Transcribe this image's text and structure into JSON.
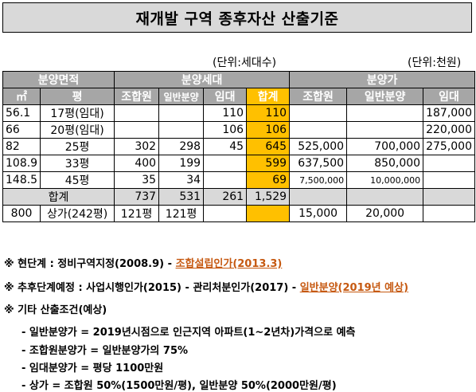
{
  "title": "재개발 구역 종후자산  산출기준",
  "units": {
    "households": "(단위:세대수)",
    "price": "(단위:천원)"
  },
  "header": {
    "area": "분양면적",
    "households": "분양세대",
    "price": "분양가",
    "sqm": "㎡",
    "pyeong": "평",
    "members": "조합원",
    "general": "일반분양",
    "rental": "임대",
    "total": "합계",
    "price_members": "조합원",
    "price_general": "일반분양",
    "price_rental": "임대"
  },
  "rows": [
    {
      "sqm": "56.1",
      "pyeong": "17평(임대)",
      "members": "",
      "general": "",
      "rental": "110",
      "total": "110",
      "p_members": "",
      "p_general": "",
      "p_rental": "187,000"
    },
    {
      "sqm": "66",
      "pyeong": "20평(임대)",
      "members": "",
      "general": "",
      "rental": "106",
      "total": "106",
      "p_members": "",
      "p_general": "",
      "p_rental": "220,000"
    },
    {
      "sqm": "82",
      "pyeong": "25평",
      "members": "302",
      "general": "298",
      "rental": "45",
      "total": "645",
      "p_members": "525,000",
      "p_general": "700,000",
      "p_rental": "275,000"
    },
    {
      "sqm": "108.9",
      "pyeong": "33평",
      "members": "400",
      "general": "199",
      "rental": "",
      "total": "599",
      "p_members": "637,500",
      "p_general": "850,000",
      "p_rental": ""
    },
    {
      "sqm": "148.5",
      "pyeong": "45평",
      "members": "35",
      "general": "34",
      "rental": "",
      "total": "69",
      "p_members": "7,500,000",
      "p_general": "10,000,000",
      "p_rental": ""
    }
  ],
  "sum_row": {
    "label": "합계",
    "members": "737",
    "general": "531",
    "rental": "261",
    "total": "1,529"
  },
  "shop_row": {
    "sqm": "800",
    "pyeong": "상가(242평)",
    "members": "121평",
    "general": "121평",
    "p_members": "15,000",
    "p_general": "20,000"
  },
  "notes": {
    "current_prefix": "※ 현단계 : 정비구역지정(2008.9) - ",
    "current_highlight": "조합설립인가(2013.3)",
    "future_prefix": "※ 추후단계예정 : 사업시행인가(2015) - 관리처분인가(2017) - ",
    "future_highlight": "일반분양(2019년 예상)",
    "other": "※ 기타 산출조건(예상)",
    "items": [
      "- 일반분양가 = 2019년시점으로 인근지역 아파트(1~2년차)가격으로 예측",
      "- 조합원분양가 = 일반분양가의 75%",
      "- 임대분양가 = 평당 1100만원",
      "- 상가 = 조합원 50%(1500만원/평), 일반분양 50%(2000만원/평)"
    ]
  },
  "colors": {
    "header_gray": "#a6a6a6",
    "total_orange": "#ffc000",
    "highlight_text": "#c65911",
    "sum_row_gray": "#d9d9d9"
  }
}
